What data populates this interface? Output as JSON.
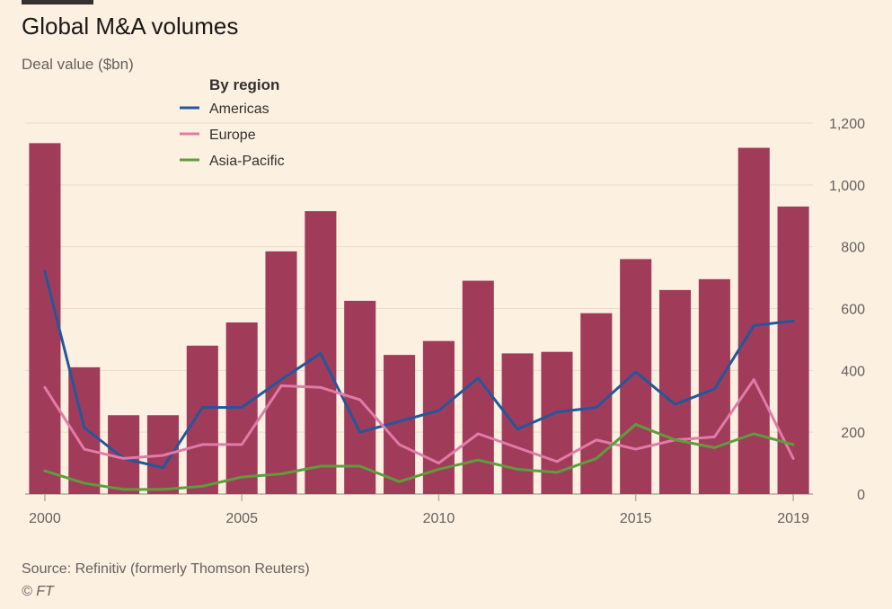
{
  "title": "Global M&A volumes",
  "subtitle": "Deal value ($bn)",
  "source": "Source: Refinitiv (formerly Thomson Reuters)",
  "copyright": "© FT",
  "legend_title": "By region",
  "colors": {
    "bars": "#a13b5a",
    "Americas": "#23579b",
    "Europe": "#e07ba8",
    "Asia-Pacific": "#5f9c3c",
    "grid": "#e9dccb",
    "axis": "#b8ada1"
  },
  "chart_data": {
    "type": "bar",
    "x": [
      2000,
      2001,
      2002,
      2003,
      2004,
      2005,
      2006,
      2007,
      2008,
      2009,
      2010,
      2011,
      2012,
      2013,
      2014,
      2015,
      2016,
      2017,
      2018,
      2019
    ],
    "values": [
      1135,
      410,
      255,
      255,
      480,
      555,
      785,
      915,
      625,
      450,
      495,
      690,
      455,
      460,
      585,
      760,
      660,
      695,
      1120,
      930
    ],
    "series": [
      {
        "name": "Americas",
        "type": "line",
        "values": [
          720,
          215,
          115,
          85,
          280,
          280,
          370,
          455,
          200,
          235,
          270,
          375,
          210,
          265,
          280,
          395,
          290,
          340,
          545,
          560
        ]
      },
      {
        "name": "Europe",
        "type": "line",
        "values": [
          345,
          145,
          115,
          125,
          160,
          160,
          350,
          345,
          305,
          160,
          100,
          195,
          150,
          105,
          175,
          145,
          175,
          185,
          370,
          115
        ]
      },
      {
        "name": "Asia-Pacific",
        "type": "line",
        "values": [
          75,
          35,
          15,
          15,
          25,
          55,
          65,
          90,
          90,
          40,
          80,
          110,
          80,
          70,
          115,
          225,
          175,
          150,
          195,
          160
        ]
      }
    ],
    "ylim": [
      0,
      1200
    ],
    "yticks": [
      0,
      200,
      400,
      600,
      800,
      1000,
      1200
    ],
    "xticks": [
      2000,
      2005,
      2010,
      2015,
      2019
    ],
    "grid": true,
    "legend_position": "top-left"
  }
}
